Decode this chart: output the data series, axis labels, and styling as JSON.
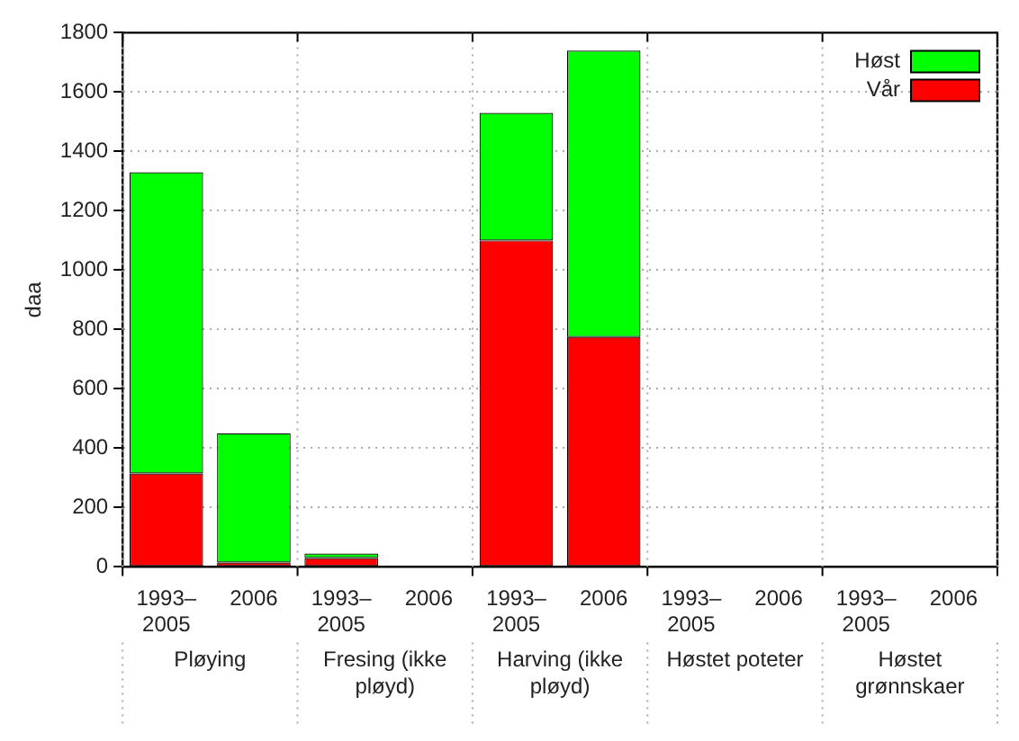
{
  "chart_data": {
    "type": "bar",
    "ylabel": "daa",
    "stacked": true,
    "grid": true,
    "legend": "top right",
    "categories": [
      "1993–\n2005",
      "2006",
      "1993–\n2005",
      "2006",
      "1993–\n2005",
      "2006",
      "1993–\n2005",
      "2006",
      "1993–\n2005",
      "2006"
    ],
    "annotations": [
      "Pløying",
      "Fresing (ikke pløyd)",
      "Harving (ikke pløyd)",
      "Høstet poteter",
      "Høstet grønnskaer"
    ],
    "ylim": [
      0,
      1800
    ],
    "yticks": [
      0,
      200,
      400,
      600,
      800,
      1000,
      1200,
      1400,
      1600,
      1800
    ],
    "series": [
      {
        "name": "Vår",
        "color": "#ff0000",
        "values": [
          315,
          15,
          30,
          null,
          1100,
          775,
          null,
          null,
          null,
          null
        ]
      },
      {
        "name": "Høst",
        "color": "#00ff00",
        "values": [
          1015,
          435,
          15,
          null,
          430,
          965,
          null,
          null,
          null,
          null
        ]
      }
    ]
  }
}
